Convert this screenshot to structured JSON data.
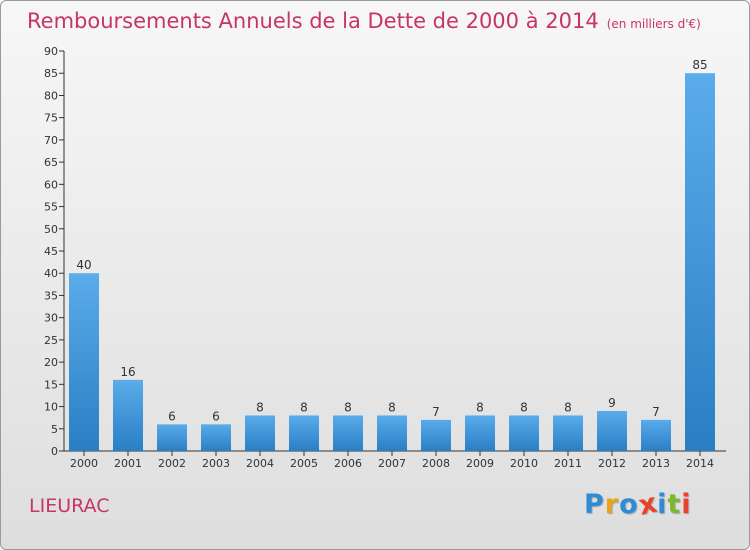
{
  "header": {
    "title": "Remboursements Annuels de la Dette de 2000 à 2014",
    "unit": "(en milliers d'€)"
  },
  "footer": {
    "commune": "LIEURAC",
    "logo_text": "Proxiti",
    "logo_letters": [
      {
        "char": "P",
        "color": "#2e8bd6"
      },
      {
        "char": "r",
        "color": "#e8a21b"
      },
      {
        "char": "o",
        "color": "#2e8bd6"
      },
      {
        "char": "x",
        "color": "#e8422b"
      },
      {
        "char": "i",
        "color": "#2e8bd6"
      },
      {
        "char": "t",
        "color": "#7ab929"
      },
      {
        "char": "i",
        "color": "#e8422b"
      }
    ]
  },
  "colors": {
    "accent": "#c8336a",
    "bar_light": "#5aacea",
    "bar_dark": "#2a7ec4"
  },
  "chart_data": {
    "type": "bar",
    "title": "Remboursements Annuels de la Dette de 2000 à 2014",
    "ylabel": "en milliers d'€",
    "xlabel": "",
    "categories": [
      "2000",
      "2001",
      "2002",
      "2003",
      "2004",
      "2005",
      "2006",
      "2007",
      "2008",
      "2009",
      "2010",
      "2011",
      "2012",
      "2013",
      "2014"
    ],
    "values": [
      40,
      16,
      6,
      6,
      8,
      8,
      8,
      8,
      7,
      8,
      8,
      8,
      9,
      7,
      85
    ],
    "ylim": [
      0,
      90
    ],
    "yticks": [
      0,
      5,
      10,
      15,
      20,
      25,
      30,
      35,
      40,
      45,
      50,
      55,
      60,
      65,
      70,
      75,
      80,
      85,
      90
    ],
    "grid": false,
    "data_labels": true
  }
}
